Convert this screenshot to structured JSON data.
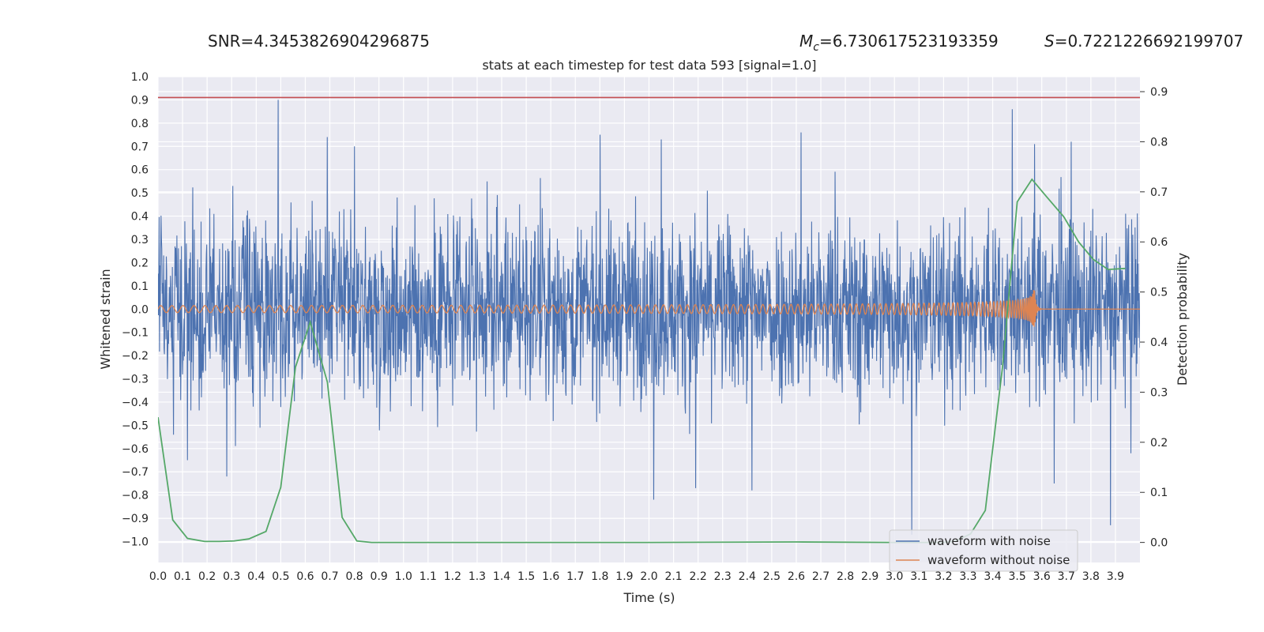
{
  "header": {
    "snr_text": "SNR=4.3453826904296875",
    "mc_symbol": "M",
    "mc_subscript": "c",
    "mc_value": "=6.730617523193359",
    "spin_symbol": "S",
    "spin_value": "=0.7221226692199707"
  },
  "chart_data": {
    "type": "line",
    "title": "stats at each timestep for test data 593 [signal=1.0]",
    "xlabel": "Time (s)",
    "ylabel": "Whitened strain",
    "y2label": "Detection probability",
    "xlim": [
      0.0,
      4.0
    ],
    "ylim": [
      -1.09,
      1.0
    ],
    "y2lim": [
      -0.04,
      0.93
    ],
    "x_ticks": [
      "0.0",
      "0.1",
      "0.2",
      "0.3",
      "0.4",
      "0.5",
      "0.6",
      "0.7",
      "0.8",
      "0.9",
      "1.0",
      "1.1",
      "1.2",
      "1.3",
      "1.4",
      "1.5",
      "1.6",
      "1.7",
      "1.8",
      "1.9",
      "2.0",
      "2.1",
      "2.2",
      "2.3",
      "2.4",
      "2.5",
      "2.6",
      "2.7",
      "2.8",
      "2.9",
      "3.0",
      "3.1",
      "3.2",
      "3.3",
      "3.4",
      "3.5",
      "3.6",
      "3.7",
      "3.8",
      "3.9"
    ],
    "y_ticks": [
      "1.0",
      "0.9",
      "0.8",
      "0.7",
      "0.6",
      "0.5",
      "0.4",
      "0.3",
      "0.2",
      "0.1",
      "0.0",
      "−0.1",
      "−0.2",
      "−0.3",
      "−0.4",
      "−0.5",
      "−0.6",
      "−0.7",
      "−0.8",
      "−0.9",
      "−1.0"
    ],
    "y2_ticks": [
      "0.9",
      "0.8",
      "0.7",
      "0.6",
      "0.5",
      "0.4",
      "0.3",
      "0.2",
      "0.1",
      "0.0"
    ],
    "grid": true,
    "threshold": {
      "value": 0.91,
      "axis": "y",
      "color": "#c44e52"
    },
    "series": [
      {
        "name": "waveform with noise",
        "color": "#4c72b0",
        "axis": "left",
        "noise_envelope": 0.38,
        "spikes": [
          {
            "x": 0.49,
            "y": 0.9
          },
          {
            "x": 0.69,
            "y": 0.74
          },
          {
            "x": 0.8,
            "y": 0.7
          },
          {
            "x": 1.8,
            "y": 0.75
          },
          {
            "x": 2.05,
            "y": 0.73
          },
          {
            "x": 2.62,
            "y": 0.76
          },
          {
            "x": 3.48,
            "y": 0.86
          },
          {
            "x": 3.57,
            "y": 0.71
          },
          {
            "x": 3.72,
            "y": 0.72
          },
          {
            "x": 0.28,
            "y": -0.72
          },
          {
            "x": 2.02,
            "y": -0.82
          },
          {
            "x": 2.19,
            "y": -0.77
          },
          {
            "x": 2.42,
            "y": -0.78
          },
          {
            "x": 3.07,
            "y": -0.97
          },
          {
            "x": 3.88,
            "y": -0.93
          },
          {
            "x": 3.65,
            "y": -0.75
          },
          {
            "x": 0.12,
            "y": -0.65
          }
        ]
      },
      {
        "name": "waveform without noise",
        "color": "#dd8452",
        "axis": "left",
        "merger_time": 3.57,
        "amplitude_start": 0.015,
        "amplitude_peak": 0.1
      },
      {
        "name": "detection probability",
        "color": "#55a868",
        "axis": "right",
        "x": [
          0.0,
          0.06,
          0.12,
          0.19,
          0.25,
          0.31,
          0.37,
          0.44,
          0.5,
          0.56,
          0.62,
          0.69,
          0.75,
          0.81,
          0.87,
          1.0,
          2.0,
          2.6,
          3.0,
          3.1,
          3.2,
          3.25,
          3.31,
          3.37,
          3.44,
          3.5,
          3.56,
          3.62,
          3.69,
          3.75,
          3.81,
          3.87,
          3.94
        ],
        "values": [
          0.25,
          0.045,
          0.008,
          0.002,
          0.002,
          0.003,
          0.007,
          0.022,
          0.11,
          0.35,
          0.44,
          0.32,
          0.05,
          0.003,
          0.0,
          0.0,
          0.0,
          0.001,
          0.0,
          0.0,
          0.0,
          0.003,
          0.017,
          0.064,
          0.35,
          0.68,
          0.725,
          0.69,
          0.65,
          0.6,
          0.565,
          0.545,
          0.547
        ]
      }
    ],
    "legend": {
      "placement": "lower-right",
      "entries": [
        "waveform with noise",
        "waveform without noise"
      ]
    }
  }
}
